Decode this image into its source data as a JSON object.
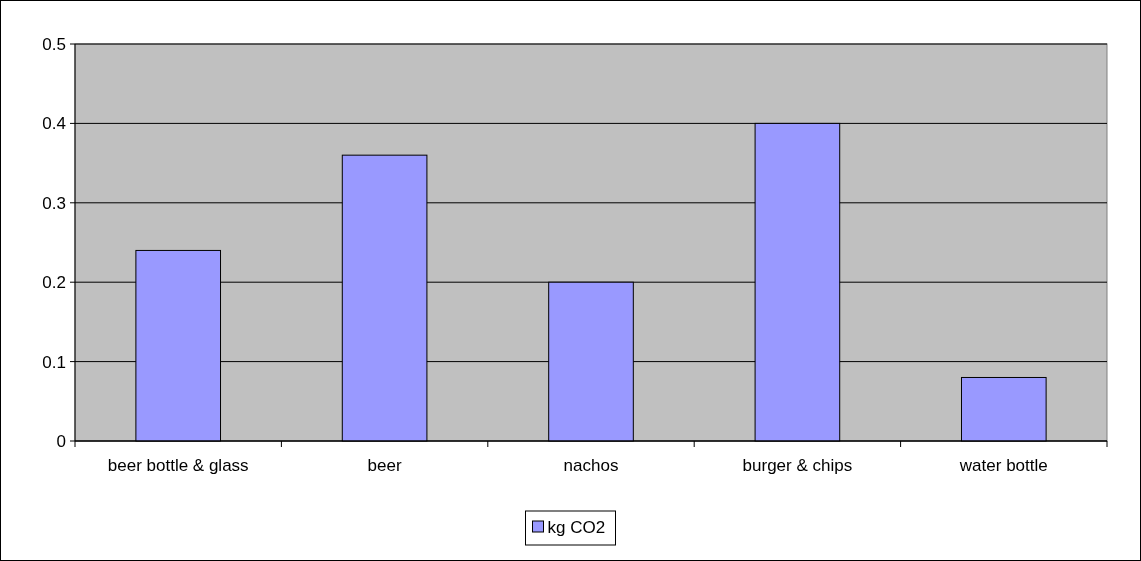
{
  "chart_data": {
    "type": "bar",
    "categories": [
      "beer bottle & glass",
      "beer",
      "nachos",
      "burger & chips",
      "water bottle"
    ],
    "series": [
      {
        "name": "kg CO2",
        "color": "#9999ff",
        "values": [
          0.24,
          0.36,
          0.2,
          0.4,
          0.08
        ]
      }
    ],
    "ylim": [
      0,
      0.5
    ],
    "yticks": [
      0,
      0.1,
      0.2,
      0.3,
      0.4,
      0.5
    ],
    "grid": "y",
    "legend": "bottom"
  }
}
